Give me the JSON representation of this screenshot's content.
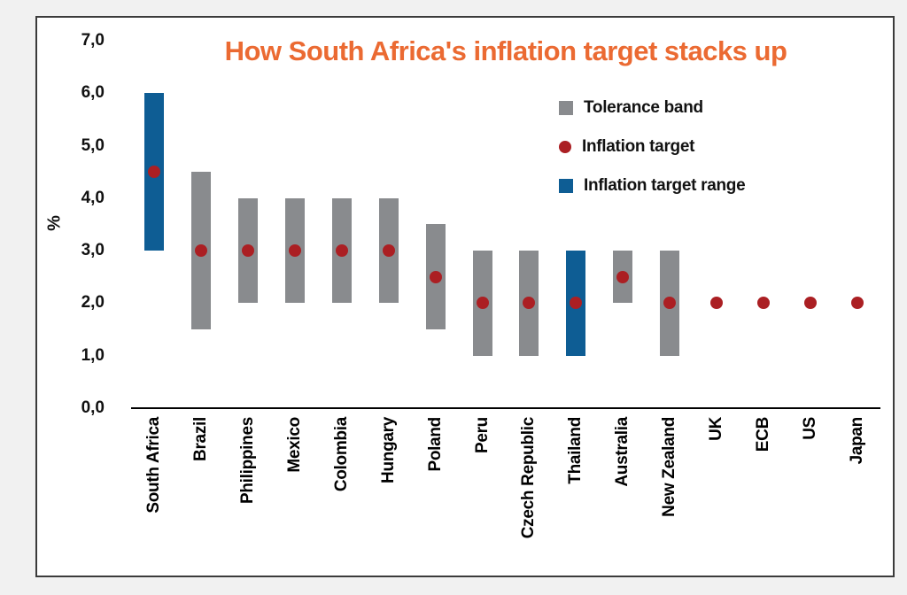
{
  "chart_data": {
    "type": "bar",
    "subtype": "floating-range-bars-with-target-dots",
    "title": "How South Africa's inflation target stacks up",
    "title_color": "#EB6A32",
    "ylabel": "%",
    "ylim": [
      0,
      7
    ],
    "ytick_step": 1,
    "ytick_labels": [
      "0,0",
      "1,0",
      "2,0",
      "3,0",
      "4,0",
      "5,0",
      "6,0",
      "7,0"
    ],
    "decimal_separator": "comma",
    "grid": false,
    "legend_position": "upper-right-inside",
    "legend": [
      {
        "label": "Tolerance band",
        "marker": "square",
        "color": "#898B8E",
        "series_key": "tolerance_band"
      },
      {
        "label": "Inflation target",
        "marker": "circle",
        "color": "#AB1F23",
        "series_key": "target"
      },
      {
        "label": "Inflation target range",
        "marker": "square",
        "color": "#0E5D94",
        "series_key": "target_range"
      }
    ],
    "categories": [
      "South Africa",
      "Brazil",
      "Philippines",
      "Mexico",
      "Colombia",
      "Hungary",
      "Poland",
      "Peru",
      "Czech Republic",
      "Thailand",
      "Australia",
      "New Zealand",
      "UK",
      "ECB",
      "US",
      "Japan"
    ],
    "points": [
      {
        "category": "South Africa",
        "band_low": 3.0,
        "band_high": 6.0,
        "band_type": "target_range",
        "target": 4.5
      },
      {
        "category": "Brazil",
        "band_low": 1.5,
        "band_high": 4.5,
        "band_type": "tolerance_band",
        "target": 3.0
      },
      {
        "category": "Philippines",
        "band_low": 2.0,
        "band_high": 4.0,
        "band_type": "tolerance_band",
        "target": 3.0
      },
      {
        "category": "Mexico",
        "band_low": 2.0,
        "band_high": 4.0,
        "band_type": "tolerance_band",
        "target": 3.0
      },
      {
        "category": "Colombia",
        "band_low": 2.0,
        "band_high": 4.0,
        "band_type": "tolerance_band",
        "target": 3.0
      },
      {
        "category": "Hungary",
        "band_low": 2.0,
        "band_high": 4.0,
        "band_type": "tolerance_band",
        "target": 3.0
      },
      {
        "category": "Poland",
        "band_low": 1.5,
        "band_high": 3.5,
        "band_type": "tolerance_band",
        "target": 2.5
      },
      {
        "category": "Peru",
        "band_low": 1.0,
        "band_high": 3.0,
        "band_type": "tolerance_band",
        "target": 2.0
      },
      {
        "category": "Czech Republic",
        "band_low": 1.0,
        "band_high": 3.0,
        "band_type": "tolerance_band",
        "target": 2.0
      },
      {
        "category": "Thailand",
        "band_low": 1.0,
        "band_high": 3.0,
        "band_type": "target_range",
        "target": 2.0
      },
      {
        "category": "Australia",
        "band_low": 2.0,
        "band_high": 3.0,
        "band_type": "tolerance_band",
        "target": 2.5
      },
      {
        "category": "New Zealand",
        "band_low": 1.0,
        "band_high": 3.0,
        "band_type": "tolerance_band",
        "target": 2.0
      },
      {
        "category": "UK",
        "band_low": null,
        "band_high": null,
        "band_type": null,
        "target": 2.0
      },
      {
        "category": "ECB",
        "band_low": null,
        "band_high": null,
        "band_type": null,
        "target": 2.0
      },
      {
        "category": "US",
        "band_low": null,
        "band_high": null,
        "band_type": null,
        "target": 2.0
      },
      {
        "category": "Japan",
        "band_low": null,
        "band_high": null,
        "band_type": null,
        "target": 2.0
      }
    ]
  }
}
